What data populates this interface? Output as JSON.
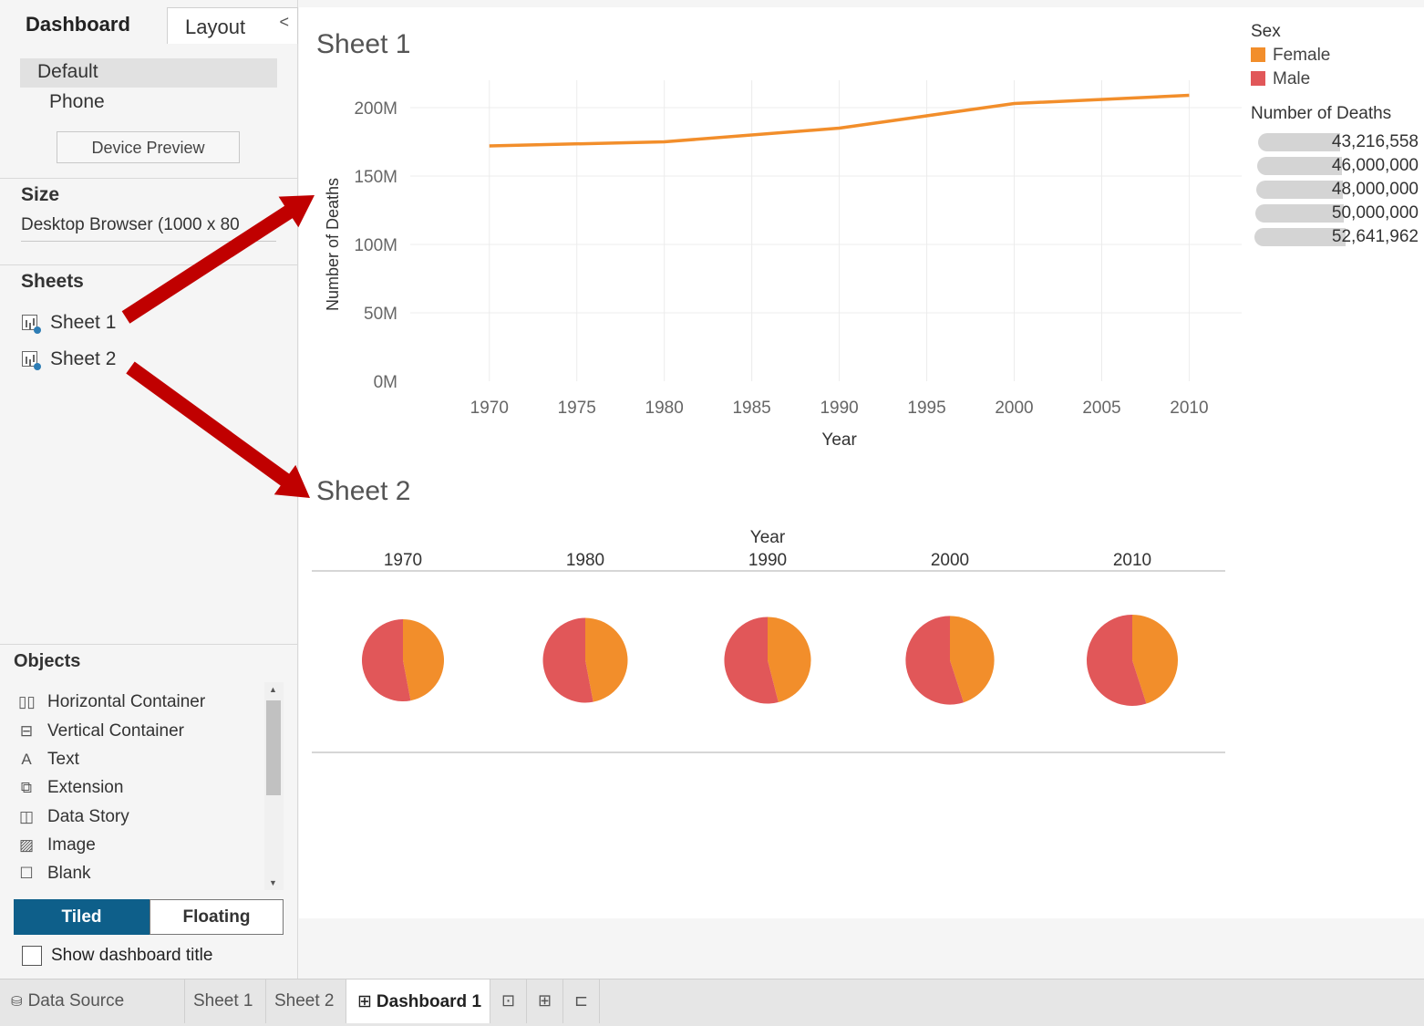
{
  "sidebar": {
    "tabs": {
      "dashboard": "Dashboard",
      "layout": "Layout"
    },
    "collapse_glyph": "<",
    "device_options": [
      "Default",
      "Phone"
    ],
    "device_preview_label": "Device Preview",
    "size": {
      "title": "Size",
      "value": "Desktop Browser (1000 x 80"
    },
    "sheets": {
      "title": "Sheets",
      "items": [
        "Sheet 1",
        "Sheet 2"
      ]
    },
    "objects": {
      "title": "Objects",
      "items": [
        {
          "label": "Horizontal Container",
          "icon": "horizontal-container-icon"
        },
        {
          "label": "Vertical Container",
          "icon": "vertical-container-icon"
        },
        {
          "label": "Text",
          "icon": "text-icon"
        },
        {
          "label": "Extension",
          "icon": "extension-icon"
        },
        {
          "label": "Data Story",
          "icon": "data-story-icon"
        },
        {
          "label": "Image",
          "icon": "image-icon"
        },
        {
          "label": "Blank",
          "icon": "blank-icon"
        }
      ]
    },
    "mode": {
      "tiled": "Tiled",
      "floating": "Floating",
      "selected": "Tiled"
    },
    "show_title_label": "Show dashboard title",
    "show_title_checked": false
  },
  "sheet1_title": "Sheet 1",
  "sheet2_title": "Sheet 2",
  "legend": {
    "sex_title": "Sex",
    "items": [
      {
        "label": "Female",
        "color": "#f28e2b"
      },
      {
        "label": "Male",
        "color": "#e15759"
      }
    ],
    "size_title": "Number of Deaths",
    "size_values": [
      "43,216,558",
      "46,000,000",
      "48,000,000",
      "50,000,000",
      "52,641,962"
    ]
  },
  "chart_data": [
    {
      "type": "line",
      "title": "Sheet 1",
      "xlabel": "Year",
      "ylabel": "Number of Deaths",
      "x_ticks": [
        1970,
        1975,
        1980,
        1985,
        1990,
        1995,
        2000,
        2005,
        2010
      ],
      "y_ticks": [
        "0M",
        "50M",
        "100M",
        "150M",
        "200M"
      ],
      "xlim": [
        1966,
        2013
      ],
      "ylim": [
        0,
        220
      ],
      "grid": true,
      "series": [
        {
          "name": "Female",
          "color": "#f28e2b",
          "x": [
            1970,
            1980,
            1990,
            2000,
            2010
          ],
          "y": [
            172,
            175,
            185,
            203,
            209
          ]
        }
      ]
    },
    {
      "type": "pie",
      "title": "Sheet 2",
      "column_header": "Year",
      "categories": [
        "1970",
        "1980",
        "1990",
        "2000",
        "2010"
      ],
      "series": [
        {
          "name": "Female",
          "color": "#f28e2b",
          "values": [
            47,
            47,
            46,
            45,
            45
          ]
        },
        {
          "name": "Male",
          "color": "#e15759",
          "values": [
            53,
            53,
            54,
            55,
            55
          ]
        }
      ],
      "size_values": [
        43216558,
        46000000,
        48000000,
        50000000,
        52641962
      ]
    }
  ],
  "bottom_tabs": {
    "data_source": "Data Source",
    "sheets": [
      "Sheet 1",
      "Sheet 2"
    ],
    "dashboard": "Dashboard 1"
  },
  "annotation_color": "#c00000"
}
